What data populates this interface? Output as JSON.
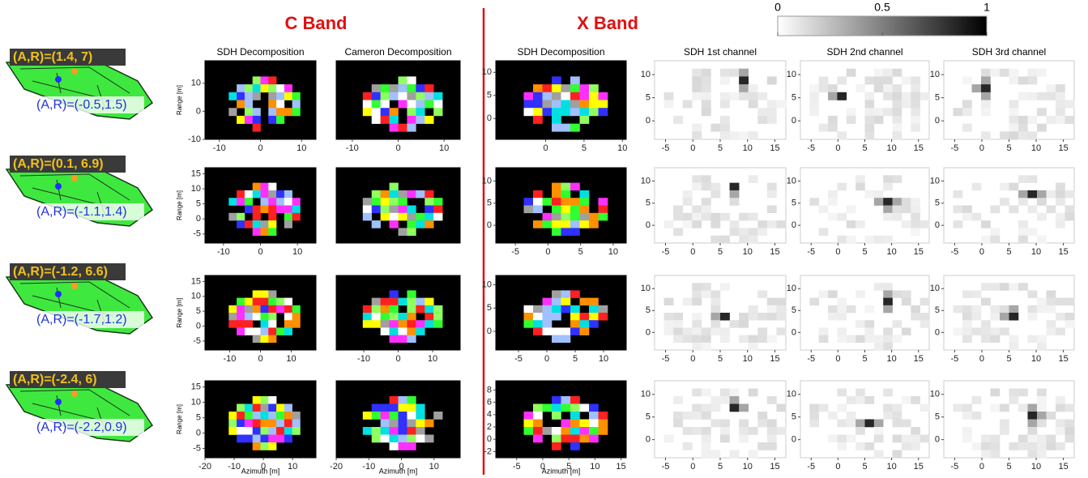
{
  "title_c": "C Band",
  "title_x": "X Band",
  "colorbar": {
    "ticks": [
      0,
      0.5,
      1
    ]
  },
  "y_label": "Range [m]",
  "x_label": "Azimuth [m]",
  "columns": [
    {
      "title": "SDH Decomposition"
    },
    {
      "title": "Cameron Decomposition"
    },
    {
      "title": "SDH Decomposition"
    },
    {
      "title": "SDH 1st channel"
    },
    {
      "title": "SDH 2nd channel"
    },
    {
      "title": "SDH 3rd channel"
    }
  ],
  "rows": [
    {
      "upper": "(A,R)=(1.4, 7)",
      "lower": "(A,R)=(-0.5,1.5)",
      "panels": [
        {
          "xlim": [
            -13.5,
            13.5
          ],
          "ylim": [
            -10,
            18
          ],
          "xticks": [
            -10,
            0,
            10
          ],
          "yticks": [
            10,
            0,
            -10
          ]
        },
        {
          "xlim": [
            -13.5,
            13.5
          ],
          "ylim": [
            -10,
            18
          ],
          "xticks": [
            -10,
            0,
            10
          ],
          "yticks": []
        },
        {
          "xlim": [
            -6.5,
            10.5
          ],
          "ylim": [
            -4.5,
            12.5
          ],
          "xticks": [
            0,
            5,
            10
          ],
          "yticks": [
            10,
            5,
            0
          ]
        },
        {
          "xlim": [
            -7,
            17
          ],
          "ylim": [
            -4,
            13
          ],
          "xticks": [
            -5,
            0,
            5,
            10,
            15
          ],
          "yticks": [
            10,
            5,
            0
          ]
        },
        {
          "xlim": [
            -7,
            17
          ],
          "ylim": [
            -4,
            13
          ],
          "xticks": [
            -5,
            0,
            5,
            10,
            15
          ],
          "yticks": [
            10,
            5,
            0
          ]
        },
        {
          "xlim": [
            -7,
            17
          ],
          "ylim": [
            -4,
            13
          ],
          "xticks": [
            -5,
            0,
            5,
            10,
            15
          ],
          "yticks": [
            10,
            5,
            0
          ]
        }
      ]
    },
    {
      "upper": "(A,R)=(0.1, 6.9)",
      "lower": "(A,R)=(-1.1,1.4)",
      "panels": [
        {
          "xlim": [
            -15,
            15
          ],
          "ylim": [
            -8,
            17
          ],
          "xticks": [
            -10,
            0,
            10
          ],
          "yticks": [
            15,
            10,
            5,
            0,
            -5
          ]
        },
        {
          "xlim": [
            -15,
            15
          ],
          "ylim": [
            -8,
            17
          ],
          "xticks": [],
          "yticks": []
        },
        {
          "xlim": [
            -8,
            12
          ],
          "ylim": [
            -4,
            13
          ],
          "xticks": [
            -5,
            0,
            5,
            10
          ],
          "yticks": [
            10,
            5,
            0
          ]
        },
        {
          "xlim": [
            -7,
            17
          ],
          "ylim": [
            -4,
            13
          ],
          "xticks": [
            -5,
            0,
            5,
            10,
            15
          ],
          "yticks": [
            10,
            5,
            0
          ]
        },
        {
          "xlim": [
            -7,
            17
          ],
          "ylim": [
            -4,
            13
          ],
          "xticks": [
            -5,
            0,
            5,
            10,
            15
          ],
          "yticks": [
            10,
            5,
            0
          ]
        },
        {
          "xlim": [
            -7,
            17
          ],
          "ylim": [
            -4,
            13
          ],
          "xticks": [
            -5,
            0,
            5,
            10,
            15
          ],
          "yticks": [
            10,
            5,
            0
          ]
        }
      ]
    },
    {
      "upper": "(A,R)=(-1.2, 6.6)",
      "lower": "(A,R)=(-1.7,1.2)",
      "panels": [
        {
          "xlim": [
            -18,
            18
          ],
          "ylim": [
            -8,
            17
          ],
          "xticks": [
            -10,
            0,
            10
          ],
          "yticks": [
            15,
            10,
            5,
            0,
            -5
          ]
        },
        {
          "xlim": [
            -18,
            18
          ],
          "ylim": [
            -8,
            17
          ],
          "xticks": [
            -10,
            0,
            10
          ],
          "yticks": []
        },
        {
          "xlim": [
            -9,
            14
          ],
          "ylim": [
            -4,
            12
          ],
          "xticks": [
            -5,
            0,
            5,
            10
          ],
          "yticks": [
            10,
            5,
            0
          ]
        },
        {
          "xlim": [
            -7,
            17
          ],
          "ylim": [
            -4,
            13
          ],
          "xticks": [
            -5,
            0,
            5,
            10,
            15
          ],
          "yticks": [
            10,
            5,
            0
          ]
        },
        {
          "xlim": [
            -7,
            17
          ],
          "ylim": [
            -4,
            13
          ],
          "xticks": [
            -5,
            0,
            5,
            10,
            15
          ],
          "yticks": [
            10,
            5,
            0
          ]
        },
        {
          "xlim": [
            -7,
            17
          ],
          "ylim": [
            -4,
            13
          ],
          "xticks": [
            -5,
            0,
            5,
            10,
            15
          ],
          "yticks": [
            10,
            5,
            0
          ]
        }
      ]
    },
    {
      "upper": "(A,R)=(-2.4, 6)",
      "lower": "(A,R)=(-2.2,0.9)",
      "panels": [
        {
          "xlim": [
            -20,
            18
          ],
          "ylim": [
            -8,
            17
          ],
          "xticks": [
            -20,
            -10,
            0,
            10
          ],
          "yticks": [
            15,
            10,
            5,
            0,
            -5
          ]
        },
        {
          "xlim": [
            -20,
            18
          ],
          "ylim": [
            -8,
            17
          ],
          "xticks": [
            -20,
            -10,
            0,
            10
          ],
          "yticks": []
        },
        {
          "xlim": [
            -9,
            16
          ],
          "ylim": [
            -3,
            9.5
          ],
          "xticks": [
            -5,
            0,
            5,
            10,
            15
          ],
          "yticks": [
            8,
            6,
            4,
            2,
            0,
            -2
          ]
        },
        {
          "xlim": [
            -7,
            17
          ],
          "ylim": [
            -4,
            13
          ],
          "xticks": [
            -5,
            0,
            5,
            10,
            15
          ],
          "yticks": [
            10,
            5,
            0
          ]
        },
        {
          "xlim": [
            -7,
            17
          ],
          "ylim": [
            -4,
            13
          ],
          "xticks": [
            -5,
            0,
            5,
            10,
            15
          ],
          "yticks": [
            10,
            5,
            0
          ]
        },
        {
          "xlim": [
            -7,
            17
          ],
          "ylim": [
            -4,
            13
          ],
          "xticks": [
            -5,
            0,
            5,
            10,
            15
          ],
          "yticks": [
            10,
            5,
            0
          ]
        }
      ]
    }
  ]
}
